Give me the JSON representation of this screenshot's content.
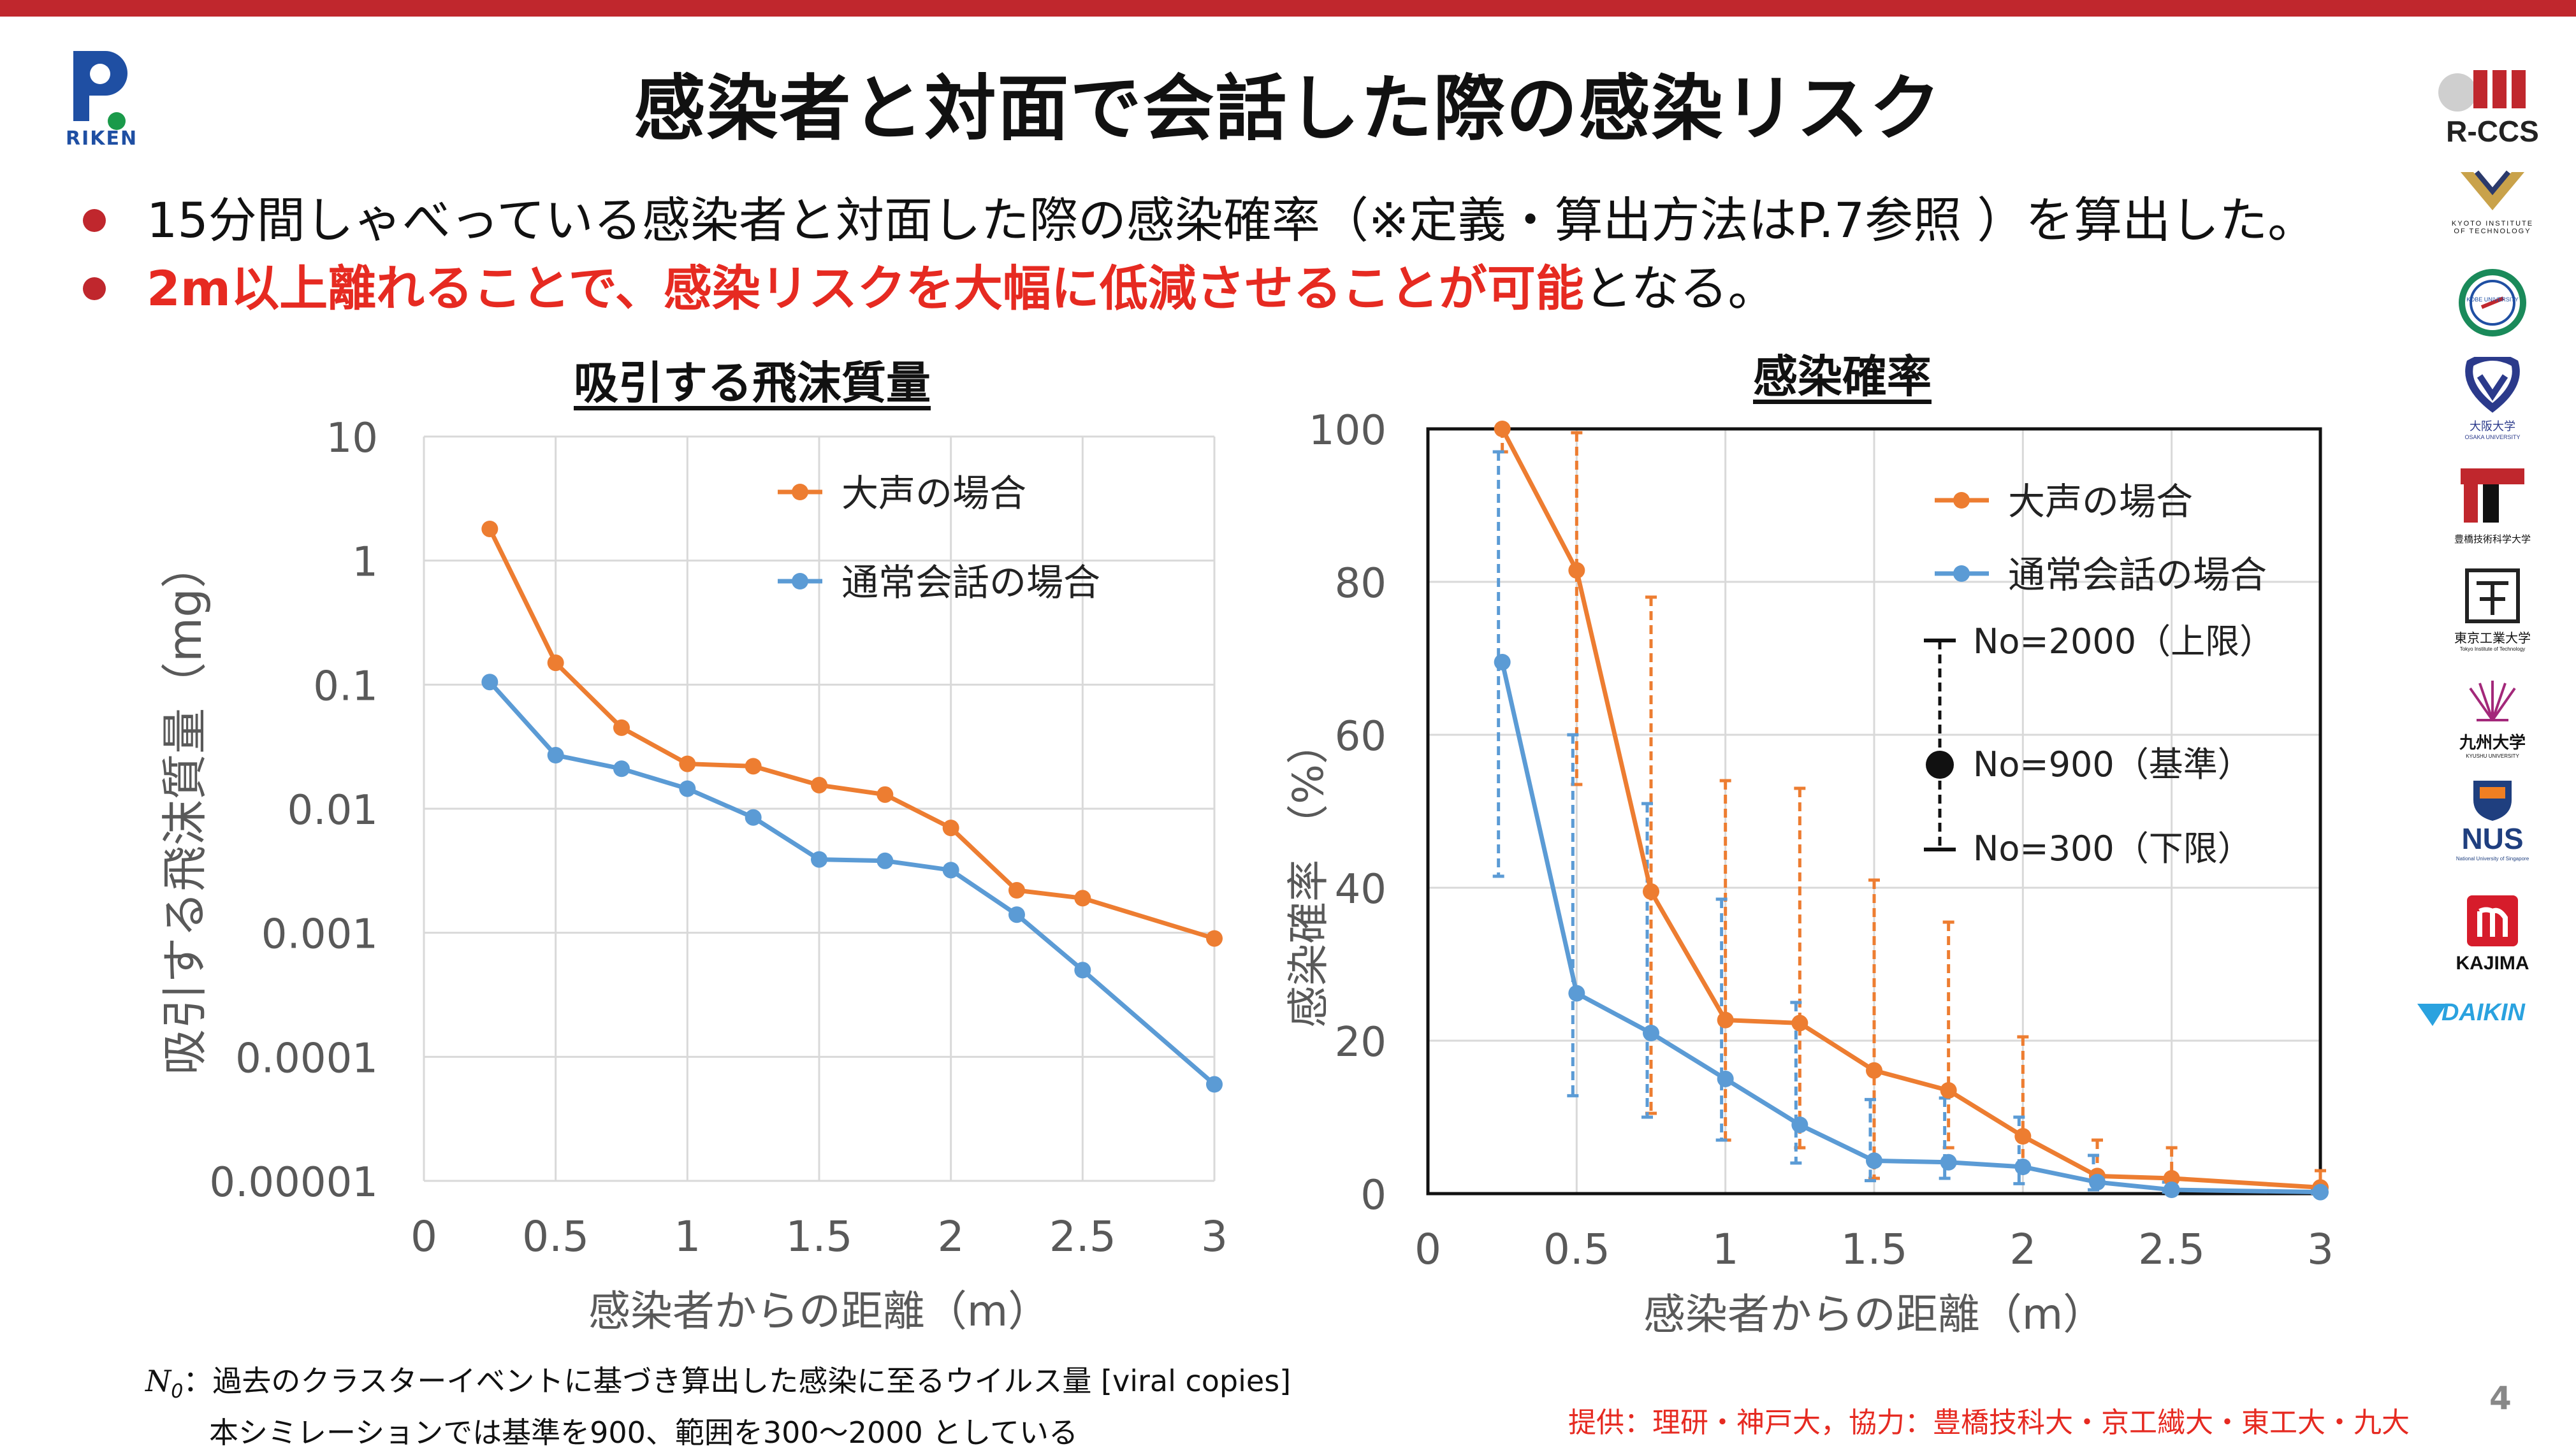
{
  "slide": {
    "title": "感染者と対面で会話した際の感染リスク",
    "bullet1": "15分間しゃべっている感染者と対面した際の感染確率（※定義・算出方法はP.7参照 ）を算出した。",
    "bullet2_red": "2m以上離れることで、感染リスクを大幅に低減させることが可能",
    "bullet2_rest": "となる。",
    "page_number": "4",
    "credit": "提供：理研・神戸大，協力：豊橋技科大・京工繊大・東工大・九大",
    "footnote_symbol": "N",
    "footnote_sub": "0",
    "footnote_line1": "：過去のクラスターイベントに基づき算出した感染に至るウイルス量 [viral copies]",
    "footnote_line2": "本シミレーションでは基準を900、範囲を300～2000 としている",
    "riken_logo_text": "RIKEN",
    "logos": {
      "rccs": "R-CCS",
      "kyoto": "KYOTO INSTITUTE OF TECHNOLOGY",
      "kobe": "KOBE UNIVERSITY",
      "osaka": "大阪大学",
      "osaka_en": "OSAKA UNIVERSITY",
      "toyohashi": "豊橋技術科学大学",
      "titech": "東京工業大学",
      "titech_en": "Tokyo Institute of Technology",
      "kyushu": "九州大学",
      "kyushu_en": "KYUSHU UNIVERSITY",
      "nus": "NUS",
      "nus_en": "National University of Singapore",
      "kajima": "KAJIMA",
      "daikin": "DAIKIN"
    }
  },
  "colors": {
    "accent": "#c0272d",
    "orange": "#ed7d31",
    "blue": "#5b9bd5",
    "red_text": "#e62a21"
  },
  "chart_data": [
    {
      "type": "line",
      "title": "吸引する飛沫質量",
      "xlabel": "感染者からの距離（m）",
      "ylabel": "吸引する飛沫質量（mg）",
      "yscale": "log",
      "ylim": [
        1e-05,
        10
      ],
      "xlim": [
        0,
        3
      ],
      "x_ticks": [
        "0",
        "0.5",
        "1",
        "1.5",
        "2",
        "2.5",
        "3"
      ],
      "y_ticks": [
        "10",
        "1",
        "0.1",
        "0.01",
        "0.001",
        "0.0001",
        "0.00001"
      ],
      "grid": true,
      "legend": "top-right",
      "x": [
        0.25,
        0.5,
        0.75,
        1,
        1.25,
        1.5,
        1.75,
        2,
        2.25,
        2.5,
        3
      ],
      "series": [
        {
          "name": "大声の場合",
          "color": "#ed7d31",
          "values": [
            1.8,
            0.15,
            0.045,
            0.023,
            0.022,
            0.0155,
            0.013,
            0.007,
            0.0022,
            0.0019,
            0.0009
          ]
        },
        {
          "name": "通常会話の場合",
          "color": "#5b9bd5",
          "values": [
            0.105,
            0.027,
            0.021,
            0.0145,
            0.0085,
            0.0039,
            0.0038,
            0.0032,
            0.0014,
            0.0005,
            6e-05
          ]
        }
      ]
    },
    {
      "type": "line",
      "title": "感染確率",
      "xlabel": "感染者からの距離（m）",
      "ylabel": "感染確率 （%）",
      "ylim": [
        0,
        100
      ],
      "xlim": [
        0,
        3
      ],
      "x_ticks": [
        "0",
        "0.5",
        "1",
        "1.5",
        "2",
        "2.5",
        "3"
      ],
      "y_ticks": [
        "100",
        "80",
        "60",
        "40",
        "20",
        "0"
      ],
      "grid": true,
      "legend": "top-right",
      "legend_errorbar": {
        "upper": "No=2000（上限）",
        "mid": "No=900（基準）",
        "lower": "No=300（下限）"
      },
      "x": [
        0.25,
        0.5,
        0.75,
        1,
        1.25,
        1.5,
        1.75,
        2,
        2.25,
        2.5,
        3
      ],
      "series": [
        {
          "name": "大声の場合",
          "color": "#ed7d31",
          "values": [
            100,
            81.5,
            39.5,
            22.7,
            22.3,
            16.1,
            13.5,
            7.5,
            2.3,
            2,
            0.8
          ],
          "upper": [
            100,
            99.5,
            78,
            54,
            53,
            41,
            35.5,
            20.5,
            7,
            6,
            3
          ],
          "lower": [
            97,
            53.5,
            10.5,
            7,
            6,
            2,
            6,
            3,
            1,
            0.7,
            0.2
          ]
        },
        {
          "name": "通常会話の場合",
          "color": "#5b9bd5",
          "values": [
            69.5,
            26.2,
            21,
            15,
            9,
            4.3,
            4.1,
            3.5,
            1.5,
            0.5,
            0.2
          ],
          "upper": [
            97,
            60,
            51,
            38.5,
            25,
            12.3,
            12.5,
            10,
            5,
            1.5,
            0.6
          ],
          "lower": [
            41.5,
            12.8,
            10,
            7,
            4,
            1.7,
            2,
            1.3,
            0.5,
            0.2,
            0.05
          ]
        }
      ]
    }
  ]
}
